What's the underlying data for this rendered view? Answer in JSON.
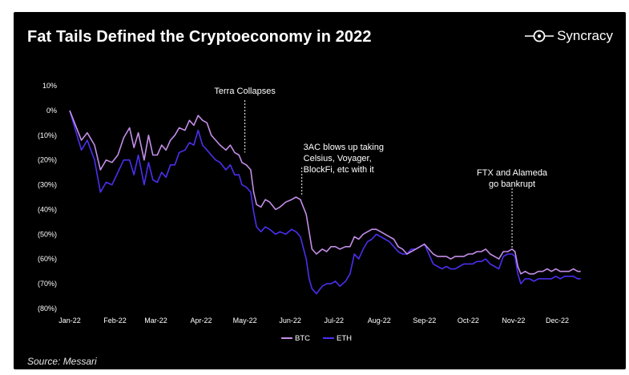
{
  "header": {
    "title": "Fat Tails Defined the Cryptoeconomy in 2022",
    "brand": "Syncracy"
  },
  "footer": {
    "source": "Source: Messari"
  },
  "colors": {
    "background": "#000000",
    "btc": "#c48ee8",
    "eth": "#4b2ff0",
    "text": "#ffffff"
  },
  "chart_data": {
    "type": "line",
    "title": "Fat Tails Defined the Cryptoeconomy in 2022",
    "xlabel": "",
    "ylabel": "",
    "ylim": [
      -80,
      10
    ],
    "yticks": [
      10,
      0,
      -10,
      -20,
      -30,
      -40,
      -50,
      -60,
      -70,
      -80
    ],
    "ytick_labels": [
      "10%",
      "0%",
      "(10%)",
      "(20%)",
      "(30%)",
      "(40%)",
      "(50%)",
      "(60%)",
      "(70%)",
      "(80%)"
    ],
    "xtick_labels": [
      "Jan-22",
      "Feb-22",
      "Mar-22",
      "Apr-22",
      "May-22",
      "Jun-22",
      "Jul-22",
      "Aug-22",
      "Sep-22",
      "Oct-22",
      "Nov-22",
      "Dec-22"
    ],
    "x_unit": "days since 2022-01-01",
    "series": [
      {
        "name": "BTC",
        "color": "#c48ee8",
        "points": [
          [
            0,
            0
          ],
          [
            4,
            -6
          ],
          [
            8,
            -12
          ],
          [
            12,
            -9
          ],
          [
            17,
            -14
          ],
          [
            21,
            -24
          ],
          [
            25,
            -20
          ],
          [
            29,
            -21
          ],
          [
            33,
            -18
          ],
          [
            37,
            -11
          ],
          [
            41,
            -7
          ],
          [
            44,
            -15
          ],
          [
            47,
            -9
          ],
          [
            51,
            -20
          ],
          [
            54,
            -10
          ],
          [
            57,
            -18
          ],
          [
            60,
            -18
          ],
          [
            63,
            -14
          ],
          [
            66,
            -16
          ],
          [
            69,
            -12
          ],
          [
            72,
            -10
          ],
          [
            75,
            -7
          ],
          [
            79,
            -8
          ],
          [
            82,
            -4
          ],
          [
            85,
            -6
          ],
          [
            88,
            -2
          ],
          [
            91,
            -4
          ],
          [
            94,
            -5
          ],
          [
            97,
            -10
          ],
          [
            100,
            -12
          ],
          [
            103,
            -14
          ],
          [
            107,
            -16
          ],
          [
            110,
            -14
          ],
          [
            113,
            -17
          ],
          [
            116,
            -18
          ],
          [
            118,
            -21
          ],
          [
            121,
            -22
          ],
          [
            124,
            -24
          ],
          [
            126,
            -33
          ],
          [
            128,
            -38
          ],
          [
            131,
            -39
          ],
          [
            134,
            -36
          ],
          [
            137,
            -37
          ],
          [
            141,
            -40
          ],
          [
            144,
            -39
          ],
          [
            148,
            -37
          ],
          [
            152,
            -36
          ],
          [
            155,
            -35
          ],
          [
            158,
            -36
          ],
          [
            162,
            -42
          ],
          [
            164,
            -49
          ],
          [
            166,
            -56
          ],
          [
            169,
            -58
          ],
          [
            173,
            -56
          ],
          [
            176,
            -57
          ],
          [
            179,
            -55
          ],
          [
            182,
            -55
          ],
          [
            185,
            -56
          ],
          [
            189,
            -55
          ],
          [
            192,
            -55
          ],
          [
            195,
            -51
          ],
          [
            198,
            -52
          ],
          [
            201,
            -50
          ],
          [
            204,
            -49
          ],
          [
            207,
            -48
          ],
          [
            210,
            -48
          ],
          [
            213,
            -49
          ],
          [
            216,
            -50
          ],
          [
            219,
            -51
          ],
          [
            222,
            -52
          ],
          [
            225,
            -55
          ],
          [
            228,
            -56
          ],
          [
            231,
            -58
          ],
          [
            234,
            -57
          ],
          [
            237,
            -56
          ],
          [
            240,
            -55
          ],
          [
            243,
            -54
          ],
          [
            246,
            -56
          ],
          [
            249,
            -58
          ],
          [
            252,
            -59
          ],
          [
            255,
            -59
          ],
          [
            258,
            -59
          ],
          [
            261,
            -60
          ],
          [
            264,
            -59
          ],
          [
            267,
            -59
          ],
          [
            270,
            -59
          ],
          [
            273,
            -58
          ],
          [
            276,
            -58
          ],
          [
            279,
            -57
          ],
          [
            282,
            -57
          ],
          [
            285,
            -56
          ],
          [
            288,
            -58
          ],
          [
            291,
            -59
          ],
          [
            294,
            -60
          ],
          [
            297,
            -57
          ],
          [
            300,
            -57
          ],
          [
            303,
            -56
          ],
          [
            305,
            -57
          ],
          [
            307,
            -63
          ],
          [
            309,
            -66
          ],
          [
            312,
            -65
          ],
          [
            315,
            -66
          ],
          [
            318,
            -66
          ],
          [
            321,
            -65
          ],
          [
            324,
            -65
          ],
          [
            327,
            -64
          ],
          [
            330,
            -65
          ],
          [
            333,
            -64
          ],
          [
            336,
            -65
          ],
          [
            339,
            -65
          ],
          [
            342,
            -65
          ],
          [
            345,
            -64
          ],
          [
            348,
            -65
          ],
          [
            350,
            -65
          ]
        ]
      },
      {
        "name": "ETH",
        "color": "#4b2ff0",
        "points": [
          [
            0,
            0
          ],
          [
            4,
            -8
          ],
          [
            8,
            -16
          ],
          [
            12,
            -12
          ],
          [
            17,
            -20
          ],
          [
            21,
            -33
          ],
          [
            25,
            -29
          ],
          [
            29,
            -30
          ],
          [
            33,
            -25
          ],
          [
            37,
            -20
          ],
          [
            41,
            -20
          ],
          [
            44,
            -26
          ],
          [
            47,
            -18
          ],
          [
            51,
            -30
          ],
          [
            54,
            -21
          ],
          [
            57,
            -28
          ],
          [
            60,
            -29
          ],
          [
            63,
            -25
          ],
          [
            66,
            -27
          ],
          [
            69,
            -22
          ],
          [
            72,
            -22
          ],
          [
            75,
            -17
          ],
          [
            79,
            -16
          ],
          [
            82,
            -13
          ],
          [
            85,
            -14
          ],
          [
            88,
            -8
          ],
          [
            91,
            -14
          ],
          [
            94,
            -16
          ],
          [
            97,
            -18
          ],
          [
            100,
            -20
          ],
          [
            103,
            -21
          ],
          [
            107,
            -24
          ],
          [
            110,
            -22
          ],
          [
            113,
            -26
          ],
          [
            116,
            -26
          ],
          [
            118,
            -30
          ],
          [
            121,
            -31
          ],
          [
            124,
            -33
          ],
          [
            126,
            -41
          ],
          [
            128,
            -47
          ],
          [
            131,
            -49
          ],
          [
            134,
            -47
          ],
          [
            137,
            -48
          ],
          [
            141,
            -50
          ],
          [
            144,
            -49
          ],
          [
            148,
            -50
          ],
          [
            152,
            -48
          ],
          [
            155,
            -49
          ],
          [
            158,
            -51
          ],
          [
            162,
            -60
          ],
          [
            164,
            -68
          ],
          [
            166,
            -72
          ],
          [
            169,
            -74
          ],
          [
            173,
            -71
          ],
          [
            176,
            -70
          ],
          [
            179,
            -70
          ],
          [
            182,
            -69
          ],
          [
            185,
            -71
          ],
          [
            189,
            -69
          ],
          [
            192,
            -66
          ],
          [
            195,
            -58
          ],
          [
            198,
            -60
          ],
          [
            201,
            -56
          ],
          [
            204,
            -53
          ],
          [
            207,
            -52
          ],
          [
            210,
            -50
          ],
          [
            213,
            -51
          ],
          [
            216,
            -52
          ],
          [
            219,
            -53
          ],
          [
            222,
            -55
          ],
          [
            225,
            -57
          ],
          [
            228,
            -58
          ],
          [
            231,
            -58
          ],
          [
            234,
            -56
          ],
          [
            237,
            -56
          ],
          [
            240,
            -55
          ],
          [
            243,
            -54
          ],
          [
            246,
            -58
          ],
          [
            249,
            -62
          ],
          [
            252,
            -63
          ],
          [
            255,
            -64
          ],
          [
            258,
            -63
          ],
          [
            261,
            -64
          ],
          [
            264,
            -64
          ],
          [
            267,
            -63
          ],
          [
            270,
            -62
          ],
          [
            273,
            -62
          ],
          [
            276,
            -62
          ],
          [
            279,
            -61
          ],
          [
            282,
            -61
          ],
          [
            285,
            -60
          ],
          [
            288,
            -62
          ],
          [
            291,
            -63
          ],
          [
            294,
            -64
          ],
          [
            297,
            -59
          ],
          [
            300,
            -58
          ],
          [
            303,
            -58
          ],
          [
            305,
            -59
          ],
          [
            307,
            -66
          ],
          [
            309,
            -70
          ],
          [
            312,
            -68
          ],
          [
            315,
            -68
          ],
          [
            318,
            -69
          ],
          [
            321,
            -68
          ],
          [
            324,
            -68
          ],
          [
            327,
            -68
          ],
          [
            330,
            -68
          ],
          [
            333,
            -67
          ],
          [
            336,
            -68
          ],
          [
            339,
            -67
          ],
          [
            342,
            -67
          ],
          [
            345,
            -67
          ],
          [
            348,
            -68
          ],
          [
            350,
            -68
          ]
        ]
      }
    ],
    "annotations": [
      {
        "lines": [
          "Terra Collapses"
        ],
        "x": 120,
        "y": -17,
        "align": "middle"
      },
      {
        "lines": [
          "3AC blows up taking",
          "Celsius, Voyager,",
          "BlockFi, etc with it"
        ],
        "x": 159,
        "y": -34,
        "align": "start"
      },
      {
        "lines": [
          "FTX and Alameda",
          "go bankrupt"
        ],
        "x": 303,
        "y": -56,
        "align": "middle"
      }
    ],
    "legend": {
      "placement": "bottom-center",
      "items": [
        "BTC",
        "ETH"
      ]
    }
  }
}
